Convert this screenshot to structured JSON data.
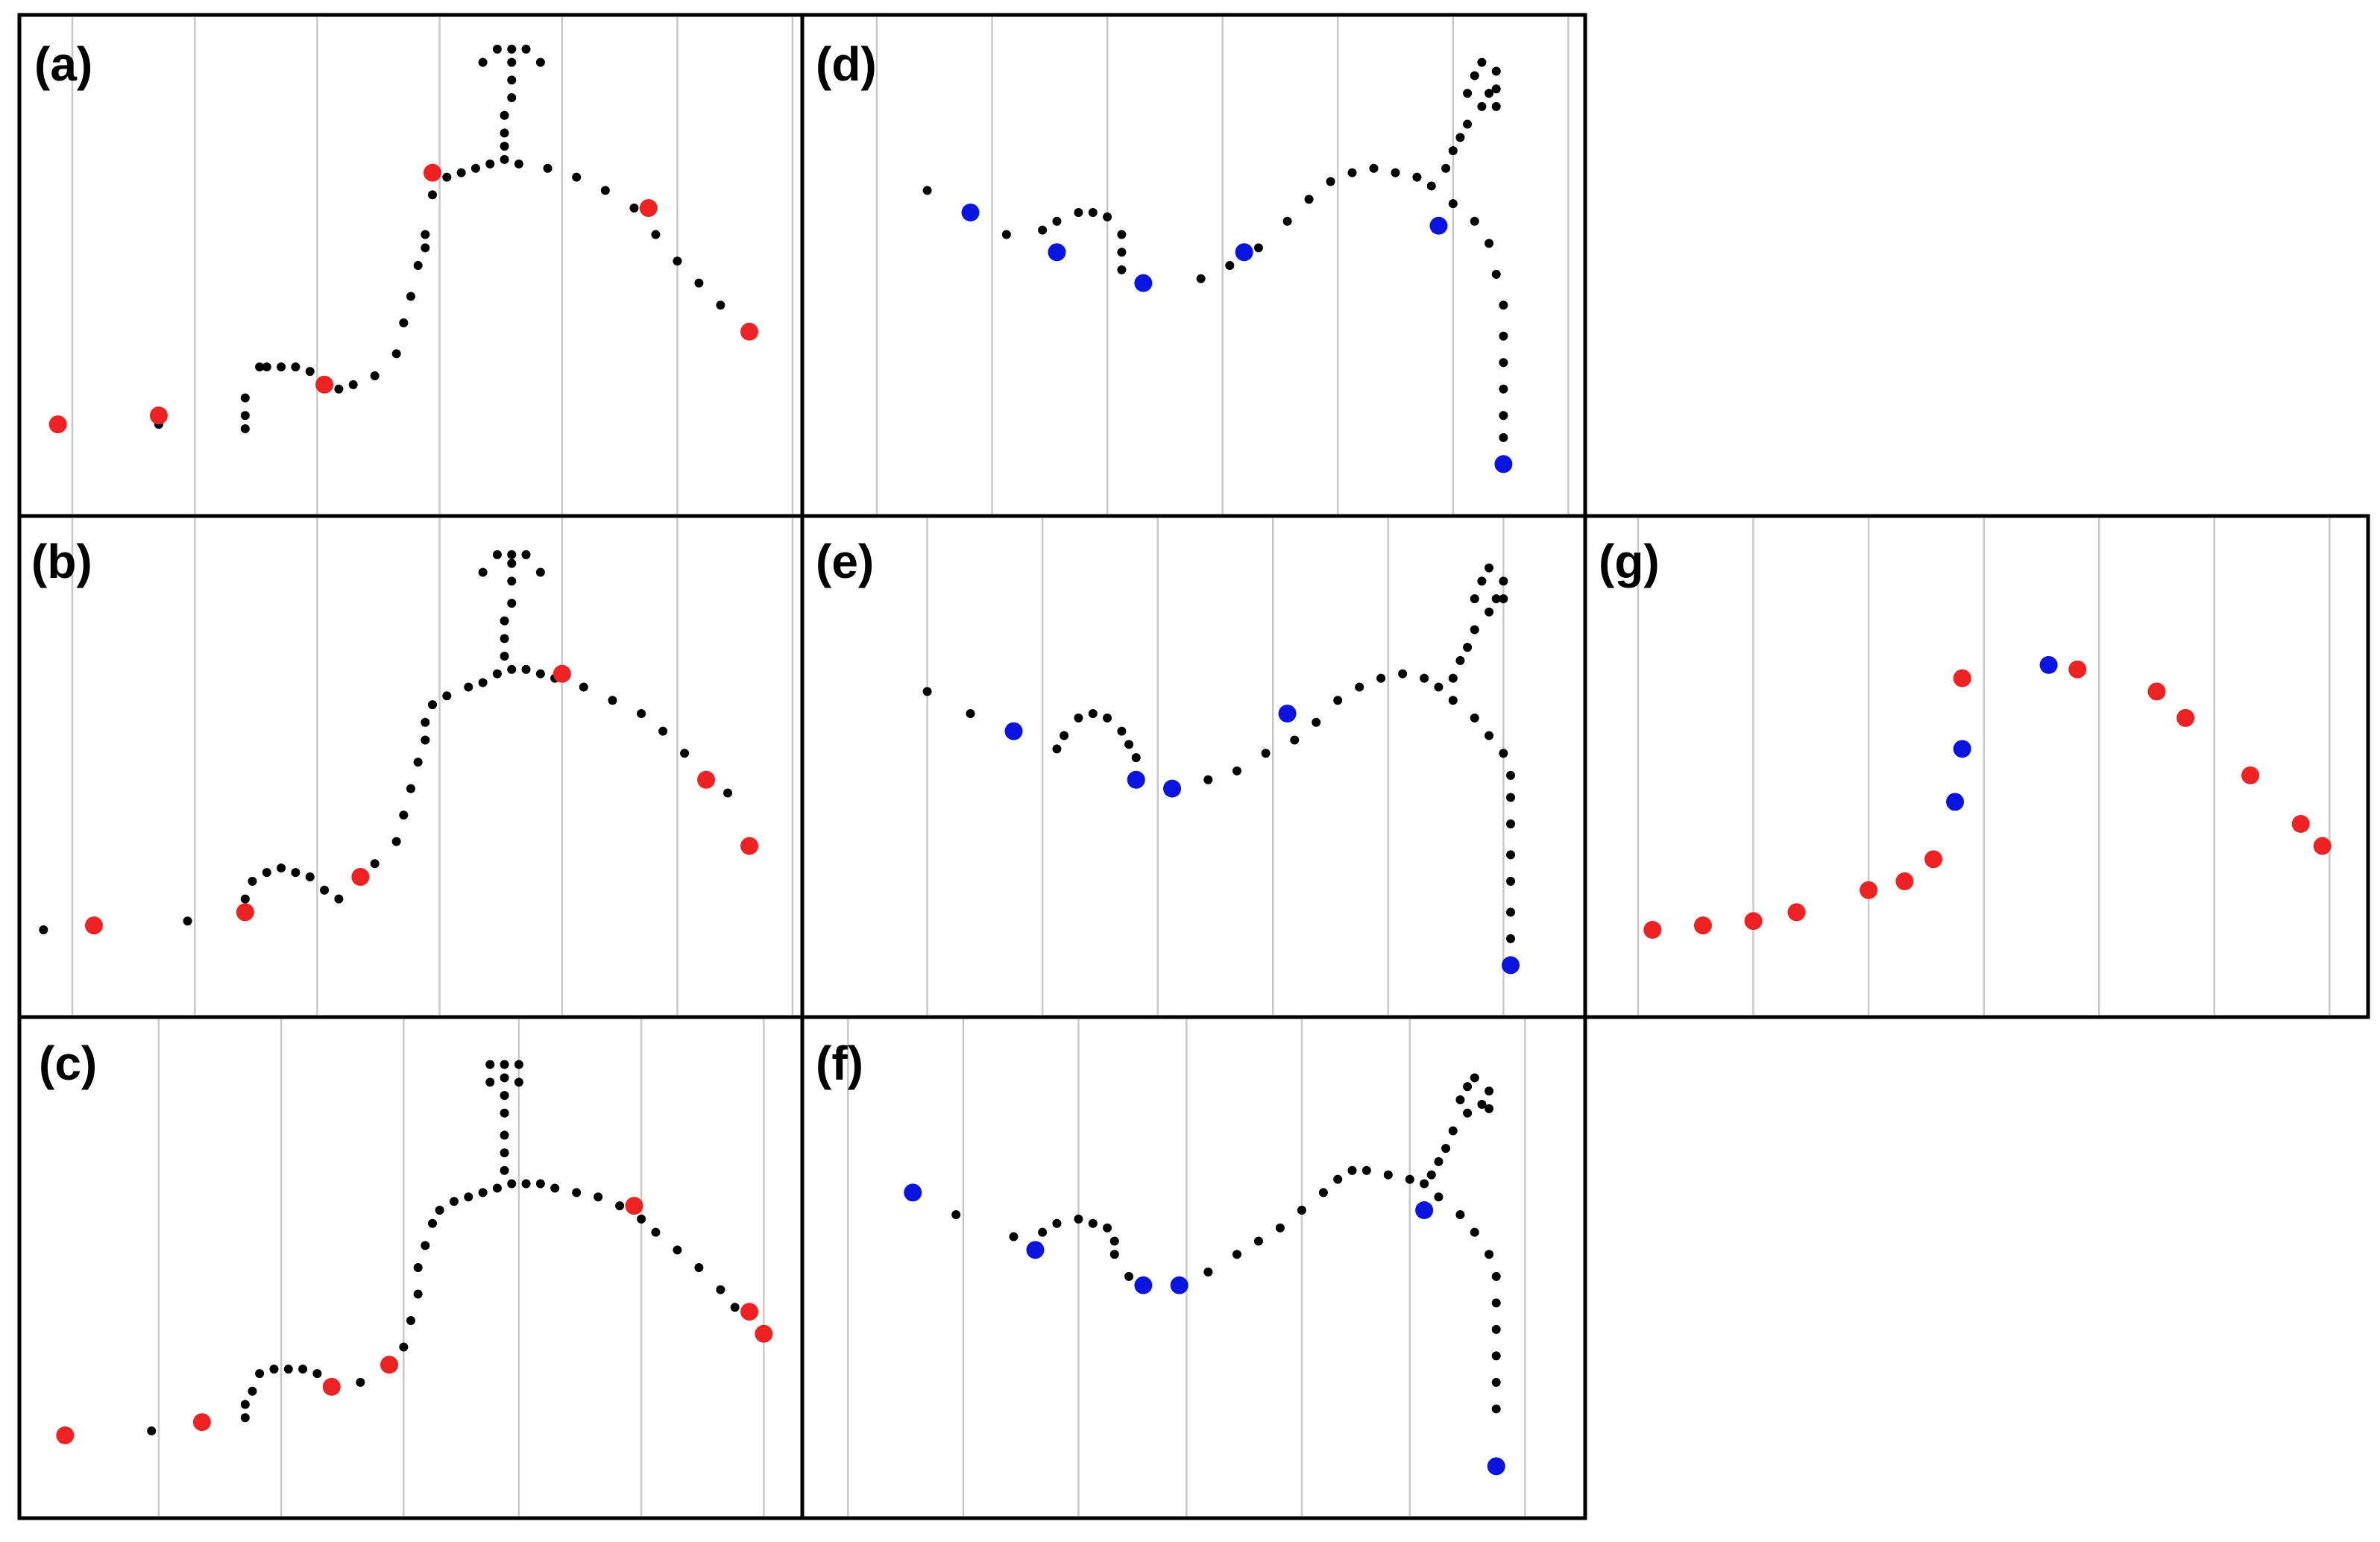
{
  "colors": {
    "small": "#000000",
    "red": "#ee2222",
    "blue": "#0a14e0",
    "grid": "#c8c8c8",
    "frame": "#000000"
  },
  "chart_data": [
    {
      "panel": "(a)",
      "type": "scatter",
      "xlim": [
        0,
        100
      ],
      "ylim": [
        0,
        100
      ],
      "grid": "vertical",
      "grid_x": [
        3,
        20,
        37,
        54,
        71,
        87,
        103
      ],
      "small": [
        [
          15,
          14
        ],
        [
          27,
          13
        ],
        [
          27,
          16
        ],
        [
          27,
          20
        ],
        [
          29,
          27
        ],
        [
          30,
          27
        ],
        [
          32,
          27
        ],
        [
          34,
          27
        ],
        [
          36,
          26
        ],
        [
          38,
          24
        ],
        [
          40,
          22
        ],
        [
          42,
          23
        ],
        [
          45,
          25
        ],
        [
          48,
          30
        ],
        [
          49,
          37
        ],
        [
          50,
          43
        ],
        [
          51,
          50
        ],
        [
          52,
          54
        ],
        [
          52,
          57
        ],
        [
          53,
          66
        ],
        [
          55,
          70
        ],
        [
          57,
          71
        ],
        [
          59,
          72
        ],
        [
          61,
          73
        ],
        [
          63,
          74
        ],
        [
          65,
          73
        ],
        [
          69,
          72
        ],
        [
          73,
          70
        ],
        [
          77,
          67
        ],
        [
          81,
          63
        ],
        [
          84,
          57
        ],
        [
          87,
          51
        ],
        [
          90,
          46
        ],
        [
          93,
          41
        ],
        [
          63,
          77
        ],
        [
          63,
          80
        ],
        [
          63,
          84
        ],
        [
          64,
          88
        ],
        [
          64,
          92
        ],
        [
          64,
          96
        ],
        [
          64,
          99
        ],
        [
          62,
          99
        ],
        [
          66,
          99
        ],
        [
          60,
          96
        ],
        [
          68,
          96
        ]
      ],
      "red": [
        [
          1,
          14
        ],
        [
          15,
          16
        ],
        [
          38,
          23
        ],
        [
          53,
          71
        ],
        [
          83,
          63
        ],
        [
          97,
          35
        ]
      ]
    },
    {
      "panel": "(b)",
      "type": "scatter",
      "xlim": [
        0,
        100
      ],
      "ylim": [
        0,
        100
      ],
      "grid": "vertical",
      "grid_x": [
        3,
        20,
        37,
        54,
        71,
        87,
        103
      ],
      "small": [
        [
          -1,
          13
        ],
        [
          19,
          15
        ],
        [
          27,
          17
        ],
        [
          27,
          20
        ],
        [
          28,
          24
        ],
        [
          30,
          26
        ],
        [
          32,
          27
        ],
        [
          34,
          26
        ],
        [
          36,
          25
        ],
        [
          38,
          22
        ],
        [
          40,
          20
        ],
        [
          45,
          28
        ],
        [
          48,
          33
        ],
        [
          49,
          39
        ],
        [
          50,
          45
        ],
        [
          51,
          51
        ],
        [
          52,
          56
        ],
        [
          52,
          60
        ],
        [
          53,
          64
        ],
        [
          55,
          66
        ],
        [
          58,
          68
        ],
        [
          60,
          69
        ],
        [
          62,
          71
        ],
        [
          64,
          72
        ],
        [
          66,
          72
        ],
        [
          68,
          71
        ],
        [
          70,
          70
        ],
        [
          74,
          68
        ],
        [
          78,
          65
        ],
        [
          82,
          62
        ],
        [
          85,
          58
        ],
        [
          88,
          53
        ],
        [
          91,
          48
        ],
        [
          94,
          44
        ],
        [
          63,
          75
        ],
        [
          63,
          79
        ],
        [
          63,
          83
        ],
        [
          64,
          87
        ],
        [
          64,
          92
        ],
        [
          64,
          96
        ],
        [
          64,
          98
        ],
        [
          62,
          98
        ],
        [
          66,
          98
        ],
        [
          60,
          94
        ],
        [
          68,
          94
        ]
      ],
      "red": [
        [
          6,
          14
        ],
        [
          27,
          17
        ],
        [
          43,
          25
        ],
        [
          71,
          71
        ],
        [
          91,
          47
        ],
        [
          97,
          32
        ]
      ]
    },
    {
      "panel": "(c)",
      "type": "scatter",
      "xlim": [
        0,
        100
      ],
      "ylim": [
        0,
        100
      ],
      "grid": "vertical",
      "grid_x": [
        15,
        32,
        49,
        65,
        82,
        99
      ],
      "small": [
        [
          14,
          13
        ],
        [
          27,
          16
        ],
        [
          27,
          19
        ],
        [
          28,
          22
        ],
        [
          29,
          26
        ],
        [
          31,
          27
        ],
        [
          33,
          27
        ],
        [
          35,
          27
        ],
        [
          37,
          26
        ],
        [
          39,
          24
        ],
        [
          43,
          24
        ],
        [
          47,
          27
        ],
        [
          49,
          32
        ],
        [
          50,
          38
        ],
        [
          51,
          44
        ],
        [
          51,
          50
        ],
        [
          52,
          55
        ],
        [
          53,
          60
        ],
        [
          54,
          63
        ],
        [
          56,
          65
        ],
        [
          58,
          66
        ],
        [
          60,
          67
        ],
        [
          62,
          68
        ],
        [
          64,
          69
        ],
        [
          66,
          69
        ],
        [
          68,
          69
        ],
        [
          70,
          68
        ],
        [
          73,
          67
        ],
        [
          76,
          66
        ],
        [
          79,
          64
        ],
        [
          82,
          61
        ],
        [
          84,
          58
        ],
        [
          87,
          54
        ],
        [
          90,
          50
        ],
        [
          93,
          45
        ],
        [
          95,
          41
        ],
        [
          63,
          72
        ],
        [
          63,
          76
        ],
        [
          63,
          80
        ],
        [
          63,
          85
        ],
        [
          63,
          89
        ],
        [
          63,
          93
        ],
        [
          63,
          96
        ],
        [
          61,
          96
        ],
        [
          65,
          96
        ],
        [
          61,
          92
        ],
        [
          65,
          92
        ]
      ],
      "red": [
        [
          2,
          12
        ],
        [
          21,
          15
        ],
        [
          39,
          23
        ],
        [
          47,
          28
        ],
        [
          81,
          64
        ],
        [
          97,
          40
        ],
        [
          99,
          35
        ]
      ]
    },
    {
      "panel": "(d)",
      "type": "scatter",
      "xlim": [
        0,
        100
      ],
      "ylim": [
        0,
        100
      ],
      "grid": "vertical",
      "grid_x": [
        6,
        22,
        38,
        54,
        70,
        86,
        102
      ],
      "small": [
        [
          13,
          67
        ],
        [
          24,
          57
        ],
        [
          29,
          58
        ],
        [
          31,
          60
        ],
        [
          34,
          62
        ],
        [
          36,
          62
        ],
        [
          38,
          61
        ],
        [
          40,
          57
        ],
        [
          40,
          53
        ],
        [
          40,
          49
        ],
        [
          51,
          47
        ],
        [
          55,
          50
        ],
        [
          59,
          54
        ],
        [
          63,
          60
        ],
        [
          66,
          65
        ],
        [
          69,
          69
        ],
        [
          72,
          71
        ],
        [
          75,
          72
        ],
        [
          78,
          71
        ],
        [
          81,
          70
        ],
        [
          83,
          68
        ],
        [
          86,
          64
        ],
        [
          89,
          60
        ],
        [
          91,
          55
        ],
        [
          92,
          48
        ],
        [
          93,
          41
        ],
        [
          93,
          34
        ],
        [
          93,
          28
        ],
        [
          93,
          22
        ],
        [
          93,
          16
        ],
        [
          93,
          11
        ],
        [
          85,
          72
        ],
        [
          86,
          76
        ],
        [
          87,
          79
        ],
        [
          88,
          82
        ],
        [
          90,
          86
        ],
        [
          88,
          89
        ],
        [
          89,
          93
        ],
        [
          91,
          89
        ],
        [
          90,
          96
        ],
        [
          92,
          94
        ],
        [
          92,
          90
        ],
        [
          92,
          86
        ]
      ],
      "blue": [
        [
          19,
          62
        ],
        [
          31,
          53
        ],
        [
          43,
          46
        ],
        [
          57,
          53
        ],
        [
          84,
          59
        ],
        [
          93,
          5
        ]
      ]
    },
    {
      "panel": "(e)",
      "type": "scatter",
      "xlim": [
        0,
        100
      ],
      "ylim": [
        0,
        100
      ],
      "grid": "vertical",
      "grid_x": [
        13,
        29,
        45,
        61,
        77,
        93,
        109
      ],
      "small": [
        [
          13,
          67
        ],
        [
          19,
          62
        ],
        [
          31,
          54
        ],
        [
          32,
          57
        ],
        [
          34,
          61
        ],
        [
          36,
          62
        ],
        [
          38,
          61
        ],
        [
          40,
          58
        ],
        [
          41,
          55
        ],
        [
          42,
          52
        ],
        [
          52,
          47
        ],
        [
          56,
          49
        ],
        [
          60,
          53
        ],
        [
          64,
          56
        ],
        [
          67,
          60
        ],
        [
          70,
          65
        ],
        [
          73,
          68
        ],
        [
          76,
          70
        ],
        [
          79,
          71
        ],
        [
          82,
          70
        ],
        [
          84,
          68
        ],
        [
          86,
          65
        ],
        [
          89,
          61
        ],
        [
          91,
          57
        ],
        [
          93,
          53
        ],
        [
          94,
          48
        ],
        [
          94,
          43
        ],
        [
          94,
          37
        ],
        [
          94,
          30
        ],
        [
          94,
          24
        ],
        [
          94,
          17
        ],
        [
          94,
          11
        ],
        [
          86,
          70
        ],
        [
          87,
          74
        ],
        [
          88,
          77
        ],
        [
          89,
          81
        ],
        [
          91,
          85
        ],
        [
          89,
          88
        ],
        [
          90,
          92
        ],
        [
          92,
          88
        ],
        [
          91,
          95
        ],
        [
          93,
          92
        ],
        [
          93,
          88
        ]
      ],
      "blue": [
        [
          25,
          58
        ],
        [
          42,
          47
        ],
        [
          47,
          45
        ],
        [
          63,
          62
        ],
        [
          94,
          5
        ]
      ]
    },
    {
      "panel": "(f)",
      "type": "scatter",
      "xlim": [
        0,
        100
      ],
      "ylim": [
        0,
        100
      ],
      "grid": "vertical",
      "grid_x": [
        2,
        18,
        34,
        49,
        65,
        80,
        96
      ],
      "small": [
        [
          17,
          62
        ],
        [
          25,
          57
        ],
        [
          29,
          58
        ],
        [
          31,
          60
        ],
        [
          34,
          61
        ],
        [
          36,
          60
        ],
        [
          38,
          59
        ],
        [
          39,
          56
        ],
        [
          39,
          53
        ],
        [
          41,
          48
        ],
        [
          52,
          49
        ],
        [
          56,
          53
        ],
        [
          59,
          56
        ],
        [
          62,
          59
        ],
        [
          65,
          63
        ],
        [
          68,
          67
        ],
        [
          70,
          70
        ],
        [
          72,
          72
        ],
        [
          74,
          72
        ],
        [
          77,
          71
        ],
        [
          80,
          70
        ],
        [
          82,
          69
        ],
        [
          84,
          66
        ],
        [
          87,
          62
        ],
        [
          89,
          58
        ],
        [
          91,
          53
        ],
        [
          92,
          48
        ],
        [
          92,
          42
        ],
        [
          92,
          36
        ],
        [
          92,
          30
        ],
        [
          92,
          24
        ],
        [
          92,
          18
        ],
        [
          83,
          71
        ],
        [
          84,
          74
        ],
        [
          85,
          77
        ],
        [
          86,
          81
        ],
        [
          88,
          85
        ],
        [
          87,
          88
        ],
        [
          88,
          91
        ],
        [
          90,
          87
        ],
        [
          89,
          93
        ],
        [
          91,
          90
        ],
        [
          91,
          86
        ]
      ],
      "blue": [
        [
          11,
          67
        ],
        [
          28,
          54
        ],
        [
          43,
          46
        ],
        [
          48,
          46
        ],
        [
          82,
          63
        ],
        [
          92,
          5
        ]
      ]
    },
    {
      "panel": "(g)",
      "type": "scatter",
      "xlim": [
        0,
        100
      ],
      "ylim": [
        0,
        100
      ],
      "grid": "vertical",
      "grid_x": [
        3,
        19,
        35,
        51,
        67,
        83,
        99
      ],
      "small": [],
      "red": [
        [
          5,
          13
        ],
        [
          12,
          14
        ],
        [
          19,
          15
        ],
        [
          25,
          17
        ],
        [
          35,
          22
        ],
        [
          40,
          24
        ],
        [
          44,
          29
        ],
        [
          48,
          70
        ],
        [
          64,
          72
        ],
        [
          75,
          67
        ],
        [
          79,
          61
        ],
        [
          88,
          48
        ],
        [
          95,
          37
        ],
        [
          98,
          32
        ]
      ],
      "blue": [
        [
          47,
          42
        ],
        [
          48,
          54
        ],
        [
          60,
          73
        ]
      ]
    }
  ]
}
